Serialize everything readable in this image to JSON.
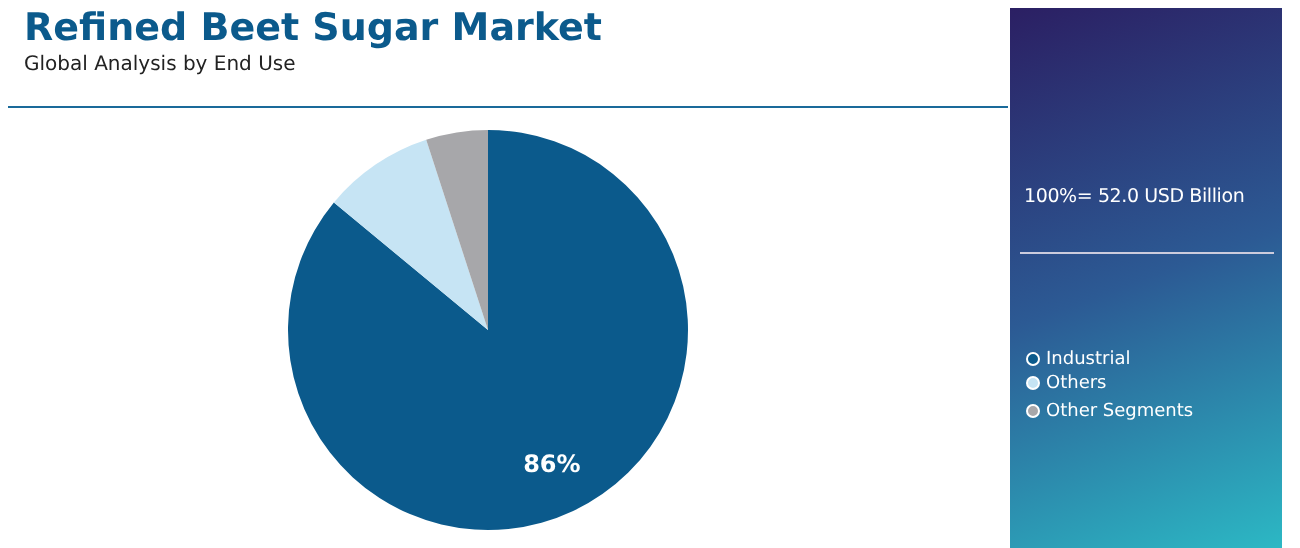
{
  "chart_data": {
    "type": "pie",
    "title": "Refined Beet Sugar Market",
    "subtitle": "Global Analysis by End Use",
    "categories": [
      "Industrial",
      "Others",
      "Other Segments"
    ],
    "values": [
      86,
      9,
      5
    ],
    "colors": [
      "#0b5a8c",
      "#c6e4f4",
      "#a7a7aa"
    ],
    "value_labels": [
      "86%",
      null,
      null
    ],
    "legend": "right",
    "annotations": [
      "100%= 52.0 USD Billion"
    ]
  }
}
